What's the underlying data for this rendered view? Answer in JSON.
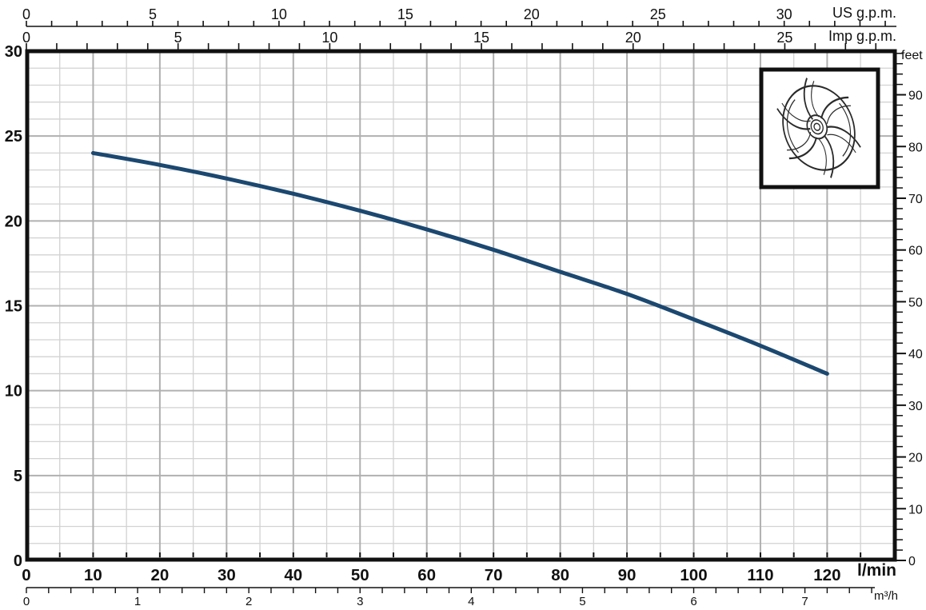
{
  "chart_data": {
    "type": "line",
    "description": "Pump performance curve: delivery head versus flow rate, with impeller drawing inset",
    "grid": true,
    "legend": false,
    "x_axes": {
      "us_gpm": {
        "unit_label": "US g.p.m.",
        "labeled_ticks": [
          0,
          5,
          10,
          15,
          20,
          25,
          30
        ],
        "minor_step": 1,
        "max_tick": 34
      },
      "imp_gpm": {
        "unit_label": "Imp g.p.m.",
        "labeled_ticks": [
          0,
          5,
          10,
          15,
          20,
          25
        ],
        "minor_step": 1,
        "max_tick": 28
      },
      "l_min": {
        "unit_label": "l/min",
        "labeled_ticks": [
          0,
          10,
          20,
          30,
          40,
          50,
          60,
          70,
          80,
          90,
          100,
          110,
          120
        ],
        "minor_step": 5,
        "max_tick": 130
      },
      "m3_h": {
        "unit_label": "m³/h",
        "labeled_ticks": [
          0,
          1,
          2,
          3,
          4,
          5,
          6,
          7
        ],
        "minor_step": 0.2,
        "max_tick": 7.6
      }
    },
    "y_axes": {
      "meters": {
        "unit_label": "",
        "labeled_ticks": [
          0,
          5,
          10,
          15,
          20,
          25,
          30
        ],
        "minor_step": 1,
        "max": 30
      },
      "feet": {
        "unit_label": "feet",
        "labeled_ticks": [
          0,
          10,
          20,
          30,
          40,
          50,
          60,
          70,
          80,
          90
        ],
        "minor_step": 2,
        "max_tick": 98
      }
    },
    "series": [
      {
        "name": "head_curve",
        "color": "#1b4870",
        "points_lmin_m": [
          [
            10,
            24.0
          ],
          [
            20,
            23.3
          ],
          [
            30,
            22.5
          ],
          [
            40,
            21.6
          ],
          [
            50,
            20.6
          ],
          [
            60,
            19.5
          ],
          [
            70,
            18.3
          ],
          [
            80,
            17.0
          ],
          [
            90,
            15.7
          ],
          [
            100,
            14.2
          ],
          [
            110,
            12.65
          ],
          [
            120,
            11.0
          ]
        ]
      }
    ],
    "inset": {
      "name": "impeller-drawing"
    },
    "colors": {
      "grid_minor": "#d2d2d2",
      "grid_major": "#b0b0b0",
      "axis": "#111111",
      "background": "#ffffff"
    }
  }
}
